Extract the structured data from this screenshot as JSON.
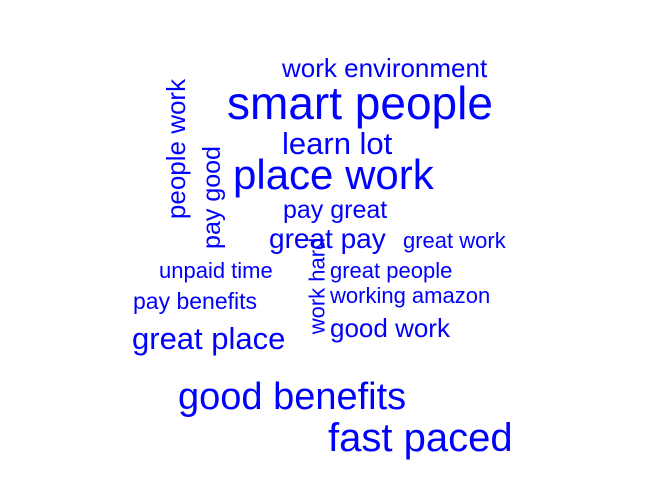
{
  "wordcloud": {
    "color": "#0000ff",
    "words": {
      "smart_people": "smart people",
      "fast_paced": "fast paced",
      "place_work": "place work",
      "good_benefits": "good benefits",
      "great_place": "great place",
      "learn_lot": "learn lot",
      "work_environment": "work environment",
      "great_pay": "great pay",
      "pay_great": "pay great",
      "great_work": "great work",
      "great_people": "great people",
      "working_amazon": "working amazon",
      "good_work": "good work",
      "unpaid_time": "unpaid time",
      "pay_benefits": "pay benefits",
      "people_work": "people work",
      "pay_good": "pay good",
      "work_hard": "work hard"
    }
  }
}
